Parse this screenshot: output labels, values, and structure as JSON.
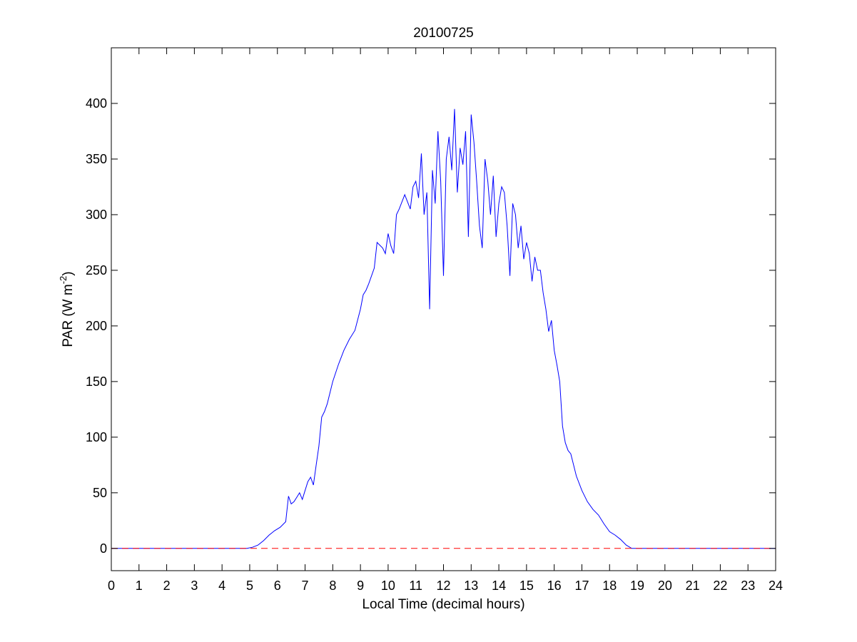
{
  "chart_data": {
    "type": "line",
    "title": "20100725",
    "xlabel": "Local Time (decimal hours)",
    "ylabel": "PAR (W m",
    "ylabel_superscript": "-2",
    "ylabel_suffix": ")",
    "xlim": [
      0,
      24
    ],
    "ylim": [
      -20,
      450
    ],
    "xticks": [
      0,
      1,
      2,
      3,
      4,
      5,
      6,
      7,
      8,
      9,
      10,
      11,
      12,
      13,
      14,
      15,
      16,
      17,
      18,
      19,
      20,
      21,
      22,
      23,
      24
    ],
    "yticks": [
      0,
      50,
      100,
      150,
      200,
      250,
      300,
      350,
      400
    ],
    "grid": false,
    "series": [
      {
        "style": "solid",
        "color": "#0000ff",
        "x": [
          0,
          4.9,
          5.1,
          5.3,
          5.5,
          5.7,
          5.9,
          6.1,
          6.3,
          6.4,
          6.5,
          6.6,
          6.7,
          6.8,
          6.9,
          7.0,
          7.1,
          7.2,
          7.3,
          7.4,
          7.5,
          7.6,
          7.7,
          7.8,
          8.0,
          8.2,
          8.4,
          8.6,
          8.8,
          9.0,
          9.1,
          9.2,
          9.3,
          9.5,
          9.6,
          9.8,
          9.9,
          10.0,
          10.1,
          10.2,
          10.3,
          10.4,
          10.6,
          10.8,
          10.9,
          11.0,
          11.1,
          11.2,
          11.3,
          11.4,
          11.5,
          11.6,
          11.7,
          11.8,
          11.9,
          12.0,
          12.1,
          12.2,
          12.3,
          12.4,
          12.5,
          12.6,
          12.7,
          12.8,
          12.9,
          13.0,
          13.1,
          13.2,
          13.3,
          13.4,
          13.5,
          13.6,
          13.7,
          13.8,
          13.9,
          14.0,
          14.1,
          14.2,
          14.3,
          14.4,
          14.5,
          14.6,
          14.7,
          14.8,
          14.9,
          15.0,
          15.1,
          15.2,
          15.3,
          15.4,
          15.5,
          15.6,
          15.7,
          15.8,
          15.9,
          16.0,
          16.1,
          16.2,
          16.3,
          16.4,
          16.5,
          16.6,
          16.7,
          16.8,
          17.0,
          17.2,
          17.4,
          17.6,
          17.8,
          18.0,
          18.2,
          18.4,
          18.6,
          18.8,
          19.0,
          19.2,
          19.4,
          19.6,
          19.8,
          24
        ],
        "y": [
          0,
          0,
          1,
          3,
          7,
          12,
          16,
          19,
          24,
          47,
          40,
          42,
          46,
          50,
          44,
          52,
          60,
          64,
          57,
          75,
          92,
          118,
          123,
          130,
          150,
          165,
          178,
          188,
          196,
          215,
          228,
          232,
          238,
          252,
          275,
          270,
          265,
          283,
          272,
          265,
          300,
          305,
          318,
          305,
          325,
          330,
          315,
          355,
          300,
          320,
          215,
          340,
          310,
          375,
          330,
          245,
          350,
          370,
          340,
          395,
          320,
          360,
          345,
          375,
          280,
          390,
          365,
          330,
          290,
          270,
          350,
          330,
          300,
          335,
          280,
          310,
          325,
          320,
          290,
          245,
          310,
          300,
          270,
          290,
          260,
          275,
          265,
          240,
          262,
          250,
          250,
          230,
          215,
          195,
          205,
          178,
          165,
          150,
          110,
          95,
          88,
          85,
          75,
          65,
          52,
          42,
          35,
          30,
          22,
          15,
          12,
          8,
          3,
          0,
          0,
          0,
          0,
          0,
          0,
          0
        ]
      },
      {
        "style": "dashed",
        "color": "#ff0000",
        "x": [
          0,
          24
        ],
        "y": [
          0,
          0
        ]
      }
    ]
  }
}
